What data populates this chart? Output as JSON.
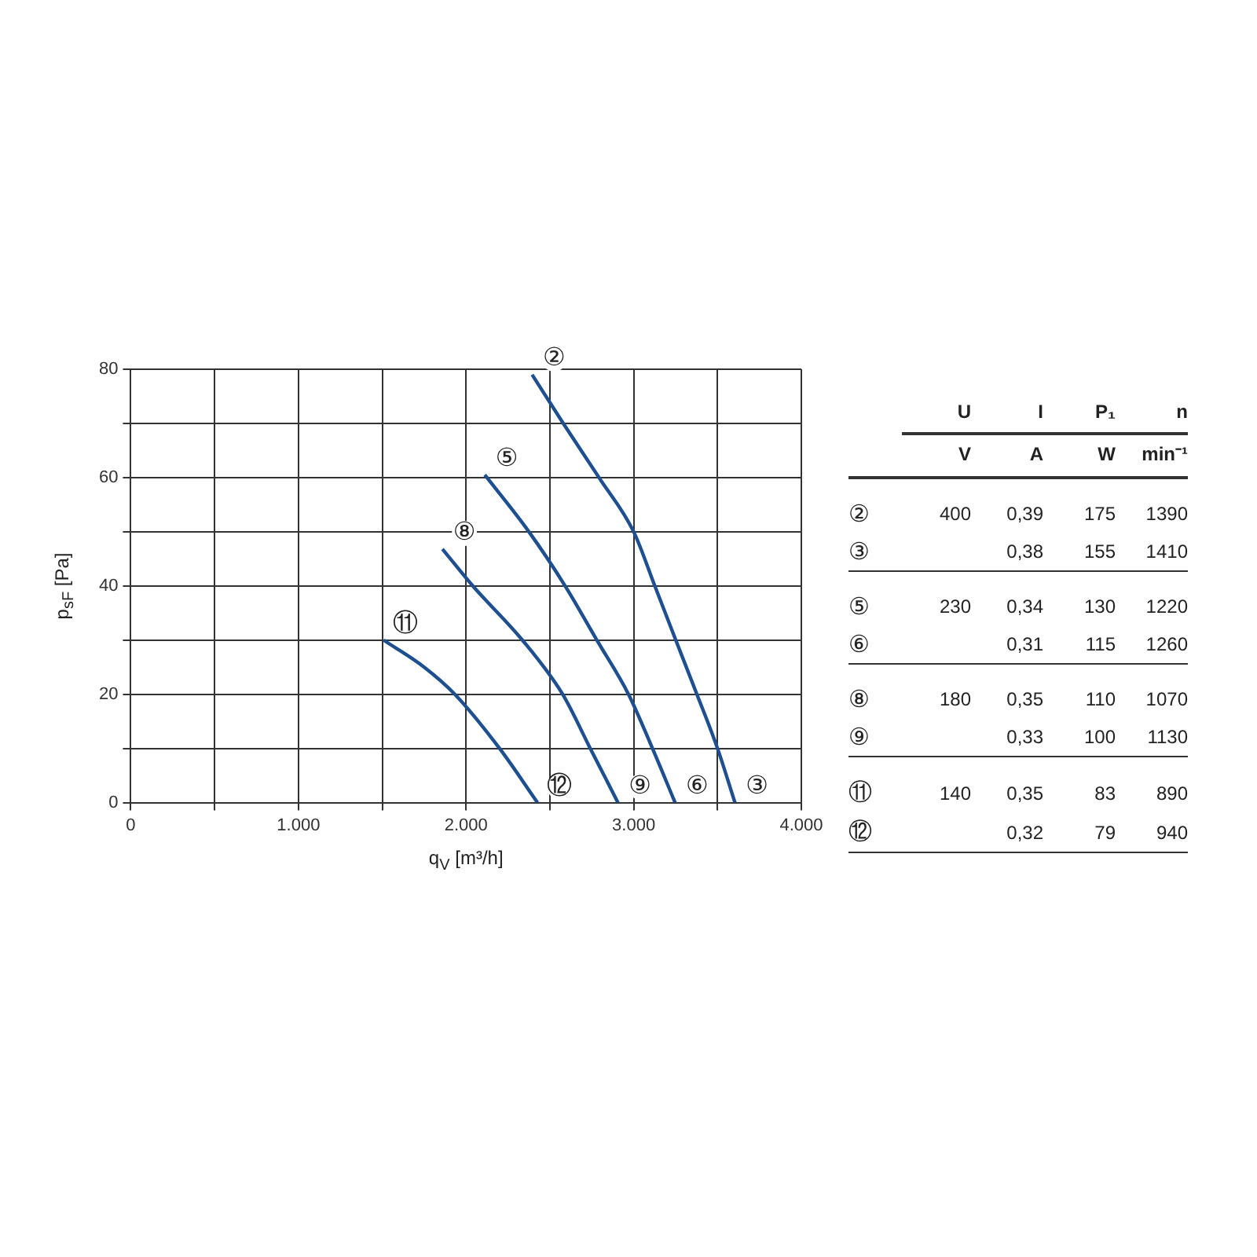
{
  "chart_data": [
    {
      "type": "line",
      "xlabel": "q$_{V}$ [m³/h]",
      "ylabel": "p$_{sF}$ [Pa]",
      "xlim": [
        0,
        4000
      ],
      "ylim": [
        0,
        80
      ],
      "xticks": [
        0,
        {
          "value": 500,
          "label": null
        },
        {
          "value": 1000,
          "label": "1.000"
        },
        {
          "value": 1500,
          "label": null
        },
        {
          "value": 2000,
          "label": "2.000"
        },
        {
          "value": 2500,
          "label": null
        },
        {
          "value": 3000,
          "label": "3.000"
        },
        {
          "value": 3500,
          "label": null
        },
        {
          "value": 4000,
          "label": "4.000"
        }
      ],
      "yticks": [
        0,
        {
          "value": 10,
          "label": null
        },
        20,
        {
          "value": 30,
          "label": null
        },
        40,
        {
          "value": 50,
          "label": null
        },
        60,
        {
          "value": 70,
          "label": null
        },
        80
      ],
      "grid": true,
      "marker": "none",
      "line_style": "solid",
      "series": [
        {
          "color": "#1d4f91",
          "x": [
            2394,
            2580,
            2793,
            3000,
            3126,
            3251,
            3377,
            3500,
            3604
          ],
          "values": [
            79,
            70,
            60,
            50,
            40,
            30,
            20,
            10,
            0
          ]
        },
        {
          "color": "#1d4f91",
          "x": [
            2112,
            2375,
            2591,
            2780,
            2969,
            3112,
            3247
          ],
          "values": [
            60.5,
            50,
            40,
            30,
            20,
            10,
            0
          ]
        },
        {
          "color": "#1d4f91",
          "x": [
            1859,
            2040,
            2336,
            2576,
            2741,
            2906
          ],
          "values": [
            46.8,
            40,
            30,
            20,
            10,
            0
          ]
        },
        {
          "color": "#1d4f91",
          "x": [
            1508,
            1750,
            1933,
            2200,
            2426
          ],
          "values": [
            30,
            25,
            20,
            10,
            0
          ]
        }
      ],
      "annotations": [
        {
          "text": "②",
          "x": 2394,
          "y": 79
        },
        {
          "text": "⑤",
          "x": 2112,
          "y": 60.5
        },
        {
          "text": "⑧",
          "x": 1859,
          "y": 46.8
        },
        {
          "text": "⑪",
          "x": 1508,
          "y": 30
        },
        {
          "text": "⑫",
          "x": 2426,
          "y": 0
        },
        {
          "text": "⑨",
          "x": 2906,
          "y": 0
        },
        {
          "text": "⑥",
          "x": 3247,
          "y": 0
        },
        {
          "text": "③",
          "x": 3604,
          "y": 0
        }
      ]
    },
    {
      "type": "other",
      "categories": [
        "U",
        "I",
        "P₁",
        "n"
      ],
      "y_categories": [
        null,
        "②",
        "③",
        "⑤",
        "⑥",
        "⑧",
        "⑨",
        "⑪",
        "⑫"
      ],
      "cell_labels": [
        [
          "V",
          "A",
          "W",
          "min⁻¹"
        ],
        [
          "400",
          "0,39",
          "175",
          "1390"
        ],
        [
          null,
          "0,38",
          "155",
          "1410"
        ],
        [
          "230",
          "0,34",
          "130",
          "1220"
        ],
        [
          null,
          "0,31",
          "115",
          "1260"
        ],
        [
          "180",
          "0,35",
          "110",
          "1070"
        ],
        [
          null,
          "0,33",
          "100",
          "1130"
        ],
        [
          "140",
          "0,35",
          "83",
          "890"
        ],
        [
          null,
          "0,32",
          "79",
          "940"
        ]
      ]
    }
  ]
}
